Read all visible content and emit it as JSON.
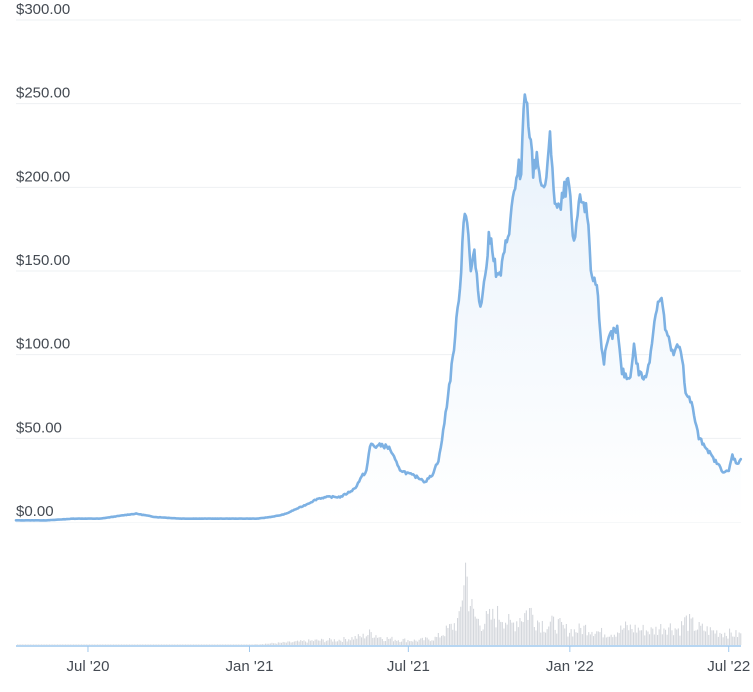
{
  "chart_data": {
    "type": "area",
    "xlabel": "",
    "ylabel": "",
    "y_tick_labels": [
      "$0.00",
      "$50.00",
      "$100.00",
      "$150.00",
      "$200.00",
      "$250.00",
      "$300.00"
    ],
    "y_tick_values": [
      0,
      50,
      100,
      150,
      200,
      250,
      300
    ],
    "ylim": [
      0,
      300
    ],
    "x_tick_labels": [
      "Jul '20",
      "Jan '21",
      "Jul '21",
      "Jan '22",
      "Jul '22"
    ],
    "x_tick_dates": [
      "2020-07-01",
      "2021-01-01",
      "2021-07-01",
      "2022-01-01",
      "2022-07-01"
    ],
    "xlim": [
      "2020-04-10",
      "2022-07-15"
    ],
    "grid": true,
    "legend": "none",
    "colors": {
      "line": "#7db1e3",
      "area_top": "#e7f1fb",
      "area_bottom": "#ffffff",
      "grid": "#eef0f3",
      "volume": "#d4d7dc",
      "axis": "#9fc8ee",
      "tick_text": "#444a52"
    },
    "series": [
      {
        "type": "line",
        "x": [
          "2020-04-10",
          "2020-05-15",
          "2020-06-15",
          "2020-07-15",
          "2020-08-10",
          "2020-08-25",
          "2020-09-15",
          "2020-10-15",
          "2020-11-15",
          "2020-12-15",
          "2021-01-10",
          "2021-01-25",
          "2021-02-05",
          "2021-02-12",
          "2021-02-20",
          "2021-03-05",
          "2021-03-20",
          "2021-04-01",
          "2021-04-15",
          "2021-04-25",
          "2021-05-01",
          "2021-05-10",
          "2021-05-14",
          "2021-05-19",
          "2021-05-24",
          "2021-06-01",
          "2021-06-10",
          "2021-06-20",
          "2021-06-26",
          "2021-07-05",
          "2021-07-15",
          "2021-07-20",
          "2021-07-28",
          "2021-08-05",
          "2021-08-10",
          "2021-08-15",
          "2021-08-20",
          "2021-08-25",
          "2021-08-30",
          "2021-09-03",
          "2021-09-06",
          "2021-09-10",
          "2021-09-15",
          "2021-09-20",
          "2021-09-25",
          "2021-10-01",
          "2021-10-05",
          "2021-10-10",
          "2021-10-15",
          "2021-10-20",
          "2021-10-25",
          "2021-11-01",
          "2021-11-04",
          "2021-11-06",
          "2021-11-10",
          "2021-11-15",
          "2021-11-20",
          "2021-11-25",
          "2021-12-01",
          "2021-12-06",
          "2021-12-10",
          "2021-12-15",
          "2021-12-20",
          "2021-12-27",
          "2022-01-01",
          "2022-01-05",
          "2022-01-10",
          "2022-01-15",
          "2022-01-22",
          "2022-01-25",
          "2022-02-01",
          "2022-02-08",
          "2022-02-15",
          "2022-02-24",
          "2022-03-01",
          "2022-03-10",
          "2022-03-15",
          "2022-03-20",
          "2022-03-28",
          "2022-04-01",
          "2022-04-05",
          "2022-04-10",
          "2022-04-15",
          "2022-04-20",
          "2022-04-28",
          "2022-05-05",
          "2022-05-10",
          "2022-05-12",
          "2022-05-20",
          "2022-05-28",
          "2022-06-05",
          "2022-06-13",
          "2022-06-18",
          "2022-06-25",
          "2022-07-01",
          "2022-07-05",
          "2022-07-10",
          "2022-07-15"
        ],
        "y": [
          1,
          1,
          2,
          2,
          4,
          5,
          3,
          2,
          2,
          2,
          2,
          3,
          4,
          5,
          7,
          10,
          14,
          15,
          15,
          18,
          20,
          28,
          30,
          47,
          45,
          46,
          44,
          32,
          30,
          28,
          26,
          24,
          28,
          38,
          55,
          75,
          95,
          120,
          150,
          190,
          180,
          150,
          160,
          130,
          140,
          170,
          165,
          145,
          150,
          165,
          180,
          205,
          215,
          195,
          255,
          240,
          210,
          220,
          195,
          210,
          230,
          190,
          185,
          200,
          200,
          160,
          185,
          195,
          180,
          150,
          140,
          95,
          110,
          115,
          90,
          85,
          105,
          90,
          85,
          95,
          110,
          130,
          135,
          115,
          100,
          105,
          95,
          80,
          70,
          50,
          45,
          38,
          35,
          30,
          30,
          40,
          35,
          37
        ]
      }
    ],
    "volume_series": {
      "type": "bar",
      "note_free": true,
      "x": [
        "2020-04-10",
        "2020-07-01",
        "2020-10-01",
        "2021-01-01",
        "2021-02-15",
        "2021-03-15",
        "2021-04-15",
        "2021-05-10",
        "2021-05-19",
        "2021-06-01",
        "2021-06-20",
        "2021-07-10",
        "2021-08-01",
        "2021-08-10",
        "2021-08-20",
        "2021-08-28",
        "2021-09-03",
        "2021-09-07",
        "2021-09-12",
        "2021-09-20",
        "2021-10-01",
        "2021-10-15",
        "2021-10-25",
        "2021-11-05",
        "2021-11-15",
        "2021-11-25",
        "2021-12-05",
        "2021-12-15",
        "2021-12-25",
        "2022-01-05",
        "2022-01-20",
        "2022-02-05",
        "2022-02-20",
        "2022-03-05",
        "2022-03-20",
        "2022-04-05",
        "2022-04-20",
        "2022-05-05",
        "2022-05-12",
        "2022-05-25",
        "2022-06-10",
        "2022-06-25",
        "2022-07-10"
      ],
      "y": [
        0.2,
        0.2,
        0.2,
        0.4,
        3,
        5,
        6,
        10,
        14,
        8,
        6,
        5,
        8,
        14,
        22,
        28,
        95,
        60,
        35,
        25,
        30,
        35,
        22,
        32,
        40,
        28,
        22,
        25,
        18,
        16,
        20,
        14,
        14,
        20,
        18,
        16,
        22,
        18,
        28,
        20,
        16,
        14,
        12
      ]
    }
  }
}
